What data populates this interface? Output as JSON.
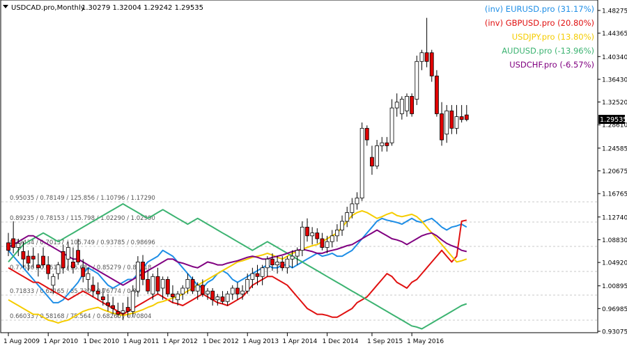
{
  "header": {
    "symbol_label": "USDCAD.pro,Monthly",
    "ohlc": "1.30279 1.32004 1.29242 1.29535"
  },
  "price_tag": "1.29535",
  "levels_text": [
    "0.95035 / 0.78149 / 125.856 / 1.10796 / 1.17290",
    "0.89235 / 0.78153 / 115.798 / 1.02290 / 1.02990",
    "0.79434 / 0.70157 / 105.749 / 0.93785 / 0.98696",
    "0.77636 / 0.66156 / 95.681 / 0.85279 / 0.89318",
    "0.71833 / 0.62165 / 85.730 / 0.76774 / 0.80",
    "0.66033 / 0.58168 / 75.564 / 0.68265 / 0.70804"
  ],
  "colors": {
    "up_candle_body": "#ffffff",
    "down_candle_body": "#e00000",
    "candle_outline": "#000000",
    "grid": "#c8c8c8",
    "EURUSD": "#1e8ee6",
    "GBPUSD": "#e01010",
    "USDJPY": "#f5cc00",
    "AUDUSD": "#3cb371",
    "USDCHF": "#800080"
  },
  "chart_data": {
    "type": "candlestick+line",
    "symbol": "USDCAD.pro",
    "timeframe": "Monthly",
    "y_ticks": [
      "1.48275",
      "1.44365",
      "1.40340",
      "1.36430",
      "1.32520",
      "1.28610",
      "1.24585",
      "1.20675",
      "1.16765",
      "1.12740",
      "1.08830",
      "1.04920",
      "1.00895",
      "0.96985",
      "0.93075"
    ],
    "ylim": [
      0.93075,
      1.48275
    ],
    "x_ticks": [
      "1 Aug 2009",
      "1 Apr 2010",
      "1 Dec 2010",
      "1 Aug 2011",
      "1 Apr 2012",
      "1 Dec 2012",
      "1 Aug 2013",
      "1 Apr 2014",
      "1 Dec 2014",
      "1 Sep 2015",
      "1 May 2016"
    ],
    "legend": [
      {
        "key": "EURUSD",
        "label": "(inv) EURUSD.pro (31.17%)"
      },
      {
        "key": "GBPUSD",
        "label": "(inv) GBPUSD.pro (20.80%)"
      },
      {
        "key": "USDJPY",
        "label": "USDJPY.pro (13.80%)"
      },
      {
        "key": "AUDUSD",
        "label": "AUDUSD.pro (-13.96%)"
      },
      {
        "key": "USDCHF",
        "label": "USDCHF.pro (-6.57%)"
      }
    ],
    "candles": [
      {
        "o": 1.083,
        "h": 1.1,
        "l": 1.06,
        "c": 1.07
      },
      {
        "o": 1.09,
        "h": 1.12,
        "l": 1.065,
        "c": 1.075
      },
      {
        "o": 1.075,
        "h": 1.09,
        "l": 1.06,
        "c": 1.082
      },
      {
        "o": 1.068,
        "h": 1.085,
        "l": 1.04,
        "c": 1.055
      },
      {
        "o": 1.06,
        "h": 1.07,
        "l": 1.035,
        "c": 1.048
      },
      {
        "o": 1.06,
        "h": 1.075,
        "l": 1.04,
        "c": 1.055
      },
      {
        "o": 1.045,
        "h": 1.065,
        "l": 1.025,
        "c": 1.04
      },
      {
        "o": 1.06,
        "h": 1.075,
        "l": 1.04,
        "c": 1.045
      },
      {
        "o": 1.045,
        "h": 1.06,
        "l": 1.02,
        "c": 1.03
      },
      {
        "o": 1.01,
        "h": 1.03,
        "l": 0.995,
        "c": 1.025
      },
      {
        "o": 1.03,
        "h": 1.05,
        "l": 1.02,
        "c": 1.045
      },
      {
        "o": 1.068,
        "h": 1.08,
        "l": 1.03,
        "c": 1.04
      },
      {
        "o": 1.055,
        "h": 1.085,
        "l": 1.035,
        "c": 1.075
      },
      {
        "o": 1.05,
        "h": 1.075,
        "l": 1.03,
        "c": 1.04
      },
      {
        "o": 1.07,
        "h": 1.09,
        "l": 1.045,
        "c": 1.05
      },
      {
        "o": 1.04,
        "h": 1.055,
        "l": 1.015,
        "c": 1.025
      },
      {
        "o": 1.02,
        "h": 1.04,
        "l": 1.0,
        "c": 1.03
      },
      {
        "o": 1.01,
        "h": 1.025,
        "l": 0.99,
        "c": 1.0
      },
      {
        "o": 1.0,
        "h": 1.015,
        "l": 0.985,
        "c": 0.995
      },
      {
        "o": 0.99,
        "h": 1.005,
        "l": 0.975,
        "c": 0.985
      },
      {
        "o": 0.98,
        "h": 0.995,
        "l": 0.965,
        "c": 0.975
      },
      {
        "o": 0.975,
        "h": 0.99,
        "l": 0.96,
        "c": 0.97
      },
      {
        "o": 0.965,
        "h": 0.98,
        "l": 0.955,
        "c": 0.96
      },
      {
        "o": 0.962,
        "h": 0.98,
        "l": 0.95,
        "c": 0.966
      },
      {
        "o": 0.972,
        "h": 0.99,
        "l": 0.955,
        "c": 0.965
      },
      {
        "o": 0.965,
        "h": 1.01,
        "l": 0.955,
        "c": 1.0
      },
      {
        "o": 1.0,
        "h": 1.06,
        "l": 0.99,
        "c": 1.05
      },
      {
        "o": 1.05,
        "h": 1.062,
        "l": 1.01,
        "c": 1.02
      },
      {
        "o": 1.02,
        "h": 1.035,
        "l": 0.995,
        "c": 1.0
      },
      {
        "o": 0.995,
        "h": 1.03,
        "l": 0.985,
        "c": 1.025
      },
      {
        "o": 1.025,
        "h": 1.04,
        "l": 0.995,
        "c": 1.0
      },
      {
        "o": 1.005,
        "h": 1.025,
        "l": 0.985,
        "c": 1.02
      },
      {
        "o": 1.02,
        "h": 1.025,
        "l": 0.99,
        "c": 0.995
      },
      {
        "o": 0.995,
        "h": 1.01,
        "l": 0.98,
        "c": 0.99
      },
      {
        "o": 0.985,
        "h": 1.0,
        "l": 0.975,
        "c": 0.995
      },
      {
        "o": 0.995,
        "h": 1.01,
        "l": 0.985,
        "c": 1.005
      },
      {
        "o": 1.005,
        "h": 1.03,
        "l": 0.995,
        "c": 1.02
      },
      {
        "o": 1.02,
        "h": 1.025,
        "l": 0.995,
        "c": 1.0
      },
      {
        "o": 1.0,
        "h": 1.015,
        "l": 0.985,
        "c": 1.01
      },
      {
        "o": 1.01,
        "h": 1.02,
        "l": 0.99,
        "c": 0.995
      },
      {
        "o": 0.995,
        "h": 1.005,
        "l": 0.985,
        "c": 1.0
      },
      {
        "o": 1.0,
        "h": 1.005,
        "l": 0.975,
        "c": 0.985
      },
      {
        "o": 0.985,
        "h": 0.995,
        "l": 0.975,
        "c": 0.99
      },
      {
        "o": 0.99,
        "h": 1.0,
        "l": 0.978,
        "c": 0.982
      },
      {
        "o": 0.982,
        "h": 1.0,
        "l": 0.975,
        "c": 0.995
      },
      {
        "o": 0.995,
        "h": 1.01,
        "l": 0.985,
        "c": 1.005
      },
      {
        "o": 1.005,
        "h": 1.015,
        "l": 0.985,
        "c": 0.995
      },
      {
        "o": 0.995,
        "h": 1.01,
        "l": 0.985,
        "c": 1.0
      },
      {
        "o": 1.0,
        "h": 1.03,
        "l": 0.995,
        "c": 1.02
      },
      {
        "o": 1.02,
        "h": 1.04,
        "l": 1.005,
        "c": 1.03
      },
      {
        "o": 1.03,
        "h": 1.045,
        "l": 1.01,
        "c": 1.025
      },
      {
        "o": 1.025,
        "h": 1.045,
        "l": 1.01,
        "c": 1.04
      },
      {
        "o": 1.04,
        "h": 1.06,
        "l": 1.025,
        "c": 1.055
      },
      {
        "o": 1.055,
        "h": 1.065,
        "l": 1.035,
        "c": 1.045
      },
      {
        "o": 1.045,
        "h": 1.06,
        "l": 1.03,
        "c": 1.05
      },
      {
        "o": 1.05,
        "h": 1.06,
        "l": 1.035,
        "c": 1.04
      },
      {
        "o": 1.04,
        "h": 1.06,
        "l": 1.03,
        "c": 1.055
      },
      {
        "o": 1.055,
        "h": 1.07,
        "l": 1.04,
        "c": 1.06
      },
      {
        "o": 1.06,
        "h": 1.075,
        "l": 1.045,
        "c": 1.07
      },
      {
        "o": 1.07,
        "h": 1.12,
        "l": 1.06,
        "c": 1.11
      },
      {
        "o": 1.11,
        "h": 1.125,
        "l": 1.085,
        "c": 1.095
      },
      {
        "o": 1.095,
        "h": 1.11,
        "l": 1.08,
        "c": 1.1
      },
      {
        "o": 1.1,
        "h": 1.108,
        "l": 1.082,
        "c": 1.09
      },
      {
        "o": 1.09,
        "h": 1.1,
        "l": 1.07,
        "c": 1.075
      },
      {
        "o": 1.075,
        "h": 1.095,
        "l": 1.065,
        "c": 1.085
      },
      {
        "o": 1.085,
        "h": 1.105,
        "l": 1.075,
        "c": 1.095
      },
      {
        "o": 1.095,
        "h": 1.115,
        "l": 1.085,
        "c": 1.105
      },
      {
        "o": 1.105,
        "h": 1.13,
        "l": 1.095,
        "c": 1.12
      },
      {
        "o": 1.12,
        "h": 1.145,
        "l": 1.11,
        "c": 1.135
      },
      {
        "o": 1.135,
        "h": 1.16,
        "l": 1.125,
        "c": 1.15
      },
      {
        "o": 1.15,
        "h": 1.17,
        "l": 1.14,
        "c": 1.16
      },
      {
        "o": 1.16,
        "h": 1.29,
        "l": 1.155,
        "c": 1.28
      },
      {
        "o": 1.28,
        "h": 1.285,
        "l": 1.25,
        "c": 1.26
      },
      {
        "o": 1.23,
        "h": 1.25,
        "l": 1.2,
        "c": 1.215
      },
      {
        "o": 1.215,
        "h": 1.26,
        "l": 1.21,
        "c": 1.25
      },
      {
        "o": 1.25,
        "h": 1.265,
        "l": 1.24,
        "c": 1.255
      },
      {
        "o": 1.255,
        "h": 1.265,
        "l": 1.24,
        "c": 1.25
      },
      {
        "o": 1.255,
        "h": 1.33,
        "l": 1.25,
        "c": 1.315
      },
      {
        "o": 1.315,
        "h": 1.34,
        "l": 1.3,
        "c": 1.325
      },
      {
        "o": 1.305,
        "h": 1.335,
        "l": 1.295,
        "c": 1.33
      },
      {
        "o": 1.31,
        "h": 1.34,
        "l": 1.3,
        "c": 1.335
      },
      {
        "o": 1.335,
        "h": 1.34,
        "l": 1.3,
        "c": 1.305
      },
      {
        "o": 1.33,
        "h": 1.405,
        "l": 1.32,
        "c": 1.395
      },
      {
        "o": 1.395,
        "h": 1.415,
        "l": 1.38,
        "c": 1.41
      },
      {
        "o": 1.41,
        "h": 1.47,
        "l": 1.385,
        "c": 1.395
      },
      {
        "o": 1.41,
        "h": 1.415,
        "l": 1.36,
        "c": 1.37
      },
      {
        "o": 1.37,
        "h": 1.38,
        "l": 1.3,
        "c": 1.305
      },
      {
        "o": 1.305,
        "h": 1.325,
        "l": 1.25,
        "c": 1.26
      },
      {
        "o": 1.27,
        "h": 1.32,
        "l": 1.255,
        "c": 1.31
      },
      {
        "o": 1.31,
        "h": 1.32,
        "l": 1.27,
        "c": 1.28
      },
      {
        "o": 1.28,
        "h": 1.32,
        "l": 1.27,
        "c": 1.3
      },
      {
        "o": 1.3,
        "h": 1.32,
        "l": 1.29,
        "c": 1.295
      },
      {
        "o": 1.303,
        "h": 1.32,
        "l": 1.292,
        "c": 1.295
      }
    ],
    "series": [
      {
        "name": "EURUSD",
        "values": [
          1.07,
          1.06,
          1.05,
          1.04,
          1.03,
          1.02,
          1.01,
          1.0,
          0.99,
          0.98,
          0.98,
          0.985,
          0.995,
          1.005,
          1.015,
          1.03,
          1.04,
          1.035,
          1.03,
          1.02,
          1.01,
          1.005,
          1.01,
          1.015,
          1.02,
          1.02,
          1.03,
          1.04,
          1.05,
          1.055,
          1.06,
          1.07,
          1.065,
          1.06,
          1.05,
          1.04,
          1.03,
          1.02,
          1.01,
          1.005,
          1.015,
          1.02,
          1.03,
          1.035,
          1.03,
          1.02,
          1.015,
          1.02,
          1.025,
          1.03,
          1.035,
          1.04,
          1.045,
          1.04,
          1.04,
          1.045,
          1.045,
          1.04,
          1.045,
          1.05,
          1.055,
          1.06,
          1.065,
          1.06,
          1.062,
          1.065,
          1.06,
          1.06,
          1.065,
          1.07,
          1.08,
          1.09,
          1.1,
          1.11,
          1.12,
          1.125,
          1.122,
          1.12,
          1.118,
          1.115,
          1.12,
          1.125,
          1.12,
          1.118,
          1.122,
          1.125,
          1.118,
          1.11,
          1.105,
          1.11,
          1.112,
          1.115,
          1.11
        ]
      },
      {
        "name": "GBPUSD",
        "values": [
          1.04,
          1.035,
          1.03,
          1.025,
          1.02,
          1.015,
          1.015,
          1.01,
          1.005,
          1.0,
          0.995,
          0.99,
          0.985,
          0.99,
          0.995,
          1.0,
          0.995,
          0.99,
          0.985,
          0.98,
          0.975,
          0.97,
          0.965,
          0.96,
          0.965,
          0.97,
          0.975,
          0.98,
          0.985,
          0.99,
          0.995,
          0.99,
          0.985,
          0.98,
          0.978,
          0.975,
          0.98,
          0.985,
          0.99,
          0.995,
          0.99,
          0.985,
          0.98,
          0.978,
          0.975,
          0.98,
          0.985,
          0.99,
          1.0,
          1.01,
          1.015,
          1.02,
          1.025,
          1.025,
          1.02,
          1.015,
          1.01,
          1.0,
          0.99,
          0.98,
          0.97,
          0.965,
          0.96,
          0.96,
          0.958,
          0.955,
          0.955,
          0.96,
          0.965,
          0.97,
          0.98,
          0.985,
          0.99,
          1.0,
          1.01,
          1.02,
          1.03,
          1.025,
          1.015,
          1.01,
          1.005,
          1.015,
          1.02,
          1.03,
          1.04,
          1.05,
          1.06,
          1.07,
          1.06,
          1.05,
          1.06,
          1.12,
          1.122
        ]
      },
      {
        "name": "USDJPY",
        "values": [
          0.985,
          0.98,
          0.975,
          0.97,
          0.965,
          0.96,
          0.96,
          0.955,
          0.95,
          0.948,
          0.945,
          0.948,
          0.95,
          0.955,
          0.96,
          0.965,
          0.968,
          0.97,
          0.972,
          0.968,
          0.965,
          0.962,
          0.96,
          0.958,
          0.96,
          0.962,
          0.965,
          0.968,
          0.972,
          0.975,
          0.98,
          0.982,
          0.985,
          0.988,
          0.99,
          0.995,
          1.0,
          1.005,
          1.01,
          1.015,
          1.02,
          1.025,
          1.03,
          1.035,
          1.04,
          1.045,
          1.05,
          1.052,
          1.055,
          1.058,
          1.06,
          1.062,
          1.065,
          1.062,
          1.058,
          1.055,
          1.06,
          1.065,
          1.068,
          1.072,
          1.075,
          1.078,
          1.08,
          1.085,
          1.09,
          1.095,
          1.1,
          1.11,
          1.12,
          1.13,
          1.135,
          1.138,
          1.135,
          1.13,
          1.125,
          1.128,
          1.132,
          1.135,
          1.13,
          1.128,
          1.13,
          1.132,
          1.128,
          1.12,
          1.11,
          1.1,
          1.09,
          1.08,
          1.07,
          1.06,
          1.05,
          1.052,
          1.055
        ]
      },
      {
        "name": "AUDUSD",
        "values": [
          1.05,
          1.06,
          1.07,
          1.08,
          1.085,
          1.09,
          1.095,
          1.1,
          1.095,
          1.09,
          1.085,
          1.09,
          1.095,
          1.1,
          1.105,
          1.11,
          1.115,
          1.12,
          1.125,
          1.13,
          1.135,
          1.14,
          1.145,
          1.15,
          1.145,
          1.14,
          1.135,
          1.13,
          1.125,
          1.13,
          1.135,
          1.14,
          1.135,
          1.13,
          1.125,
          1.12,
          1.115,
          1.12,
          1.125,
          1.12,
          1.115,
          1.11,
          1.105,
          1.1,
          1.095,
          1.09,
          1.085,
          1.08,
          1.075,
          1.07,
          1.075,
          1.08,
          1.085,
          1.08,
          1.075,
          1.07,
          1.065,
          1.06,
          1.055,
          1.05,
          1.045,
          1.04,
          1.035,
          1.03,
          1.025,
          1.02,
          1.015,
          1.01,
          1.005,
          1.0,
          0.995,
          0.99,
          0.985,
          0.98,
          0.975,
          0.97,
          0.965,
          0.96,
          0.955,
          0.95,
          0.945,
          0.94,
          0.938,
          0.935,
          0.94,
          0.945,
          0.95,
          0.955,
          0.96,
          0.965,
          0.97,
          0.975,
          0.978
        ]
      },
      {
        "name": "USDCHF",
        "values": [
          1.075,
          1.08,
          1.085,
          1.09,
          1.095,
          1.095,
          1.09,
          1.085,
          1.08,
          1.075,
          1.07,
          1.065,
          1.06,
          1.055,
          1.055,
          1.05,
          1.045,
          1.04,
          1.035,
          1.03,
          1.025,
          1.02,
          1.015,
          1.01,
          1.015,
          1.02,
          1.025,
          1.03,
          1.035,
          1.04,
          1.045,
          1.05,
          1.055,
          1.055,
          1.05,
          1.048,
          1.045,
          1.042,
          1.04,
          1.045,
          1.05,
          1.048,
          1.045,
          1.045,
          1.048,
          1.05,
          1.052,
          1.055,
          1.058,
          1.06,
          1.058,
          1.055,
          1.055,
          1.058,
          1.06,
          1.062,
          1.065,
          1.068,
          1.07,
          1.072,
          1.07,
          1.068,
          1.065,
          1.065,
          1.068,
          1.07,
          1.072,
          1.075,
          1.078,
          1.08,
          1.085,
          1.09,
          1.095,
          1.1,
          1.105,
          1.1,
          1.095,
          1.09,
          1.088,
          1.085,
          1.08,
          1.085,
          1.09,
          1.095,
          1.098,
          1.1,
          1.095,
          1.088,
          1.082,
          1.078,
          1.075,
          1.07,
          1.068
        ]
      }
    ]
  }
}
